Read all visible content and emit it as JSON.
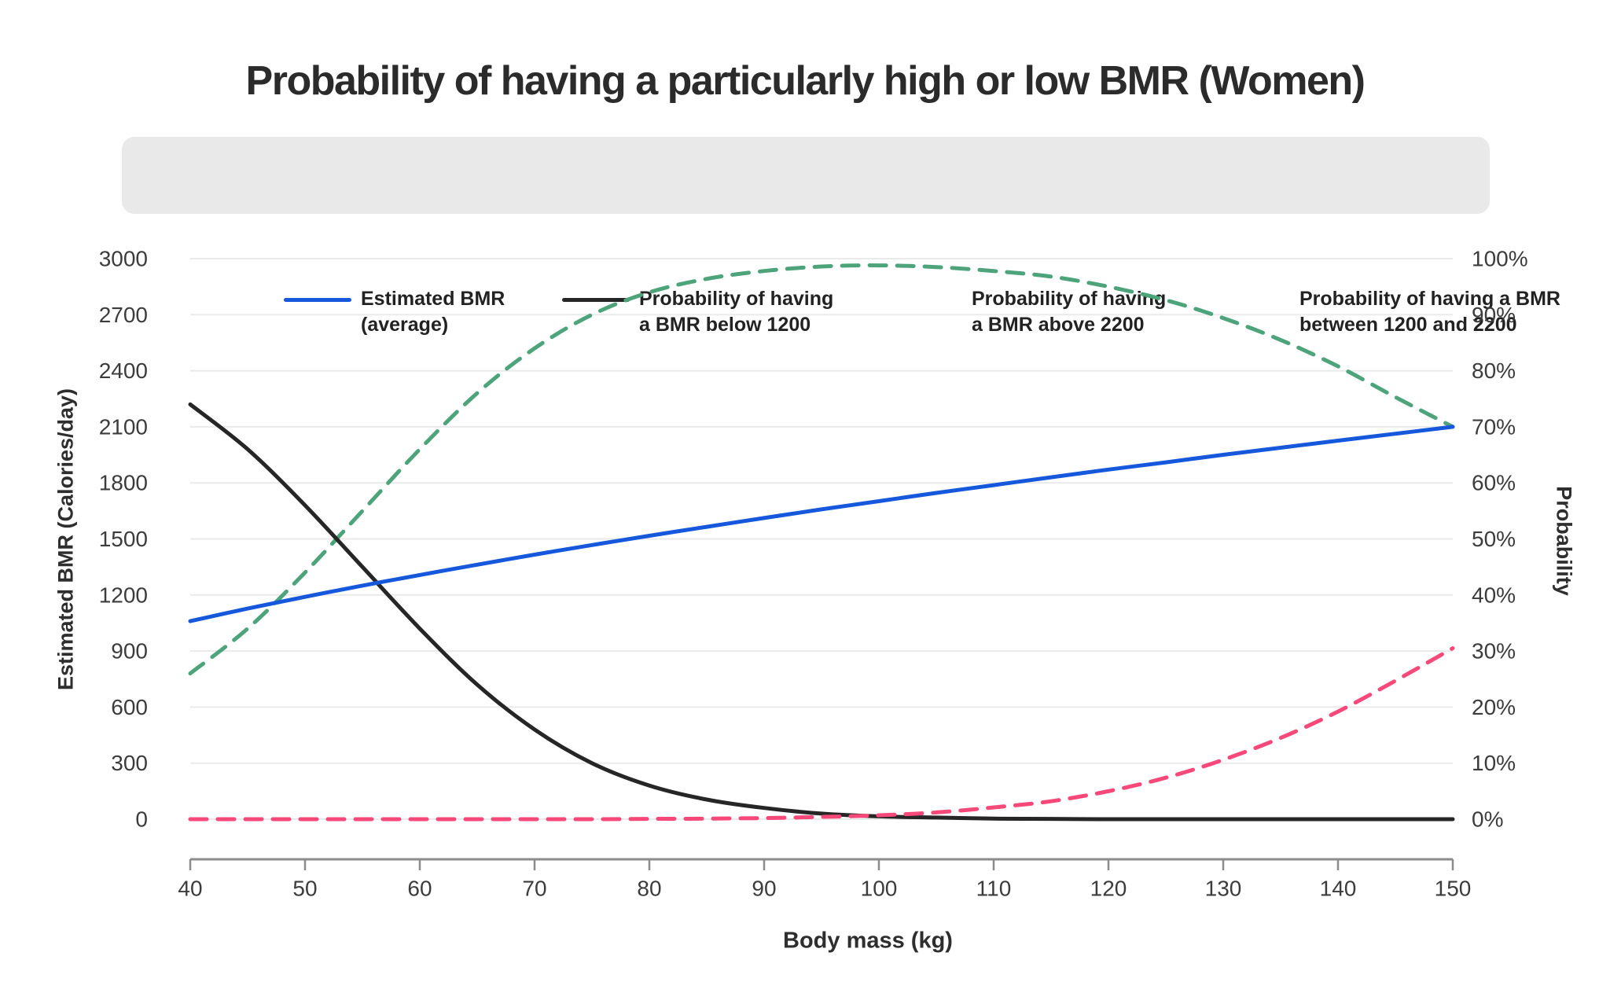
{
  "title": "Probability of having a particularly high or low BMR (Women)",
  "legend": {
    "background_color": "#e9e9e9",
    "items": [
      {
        "name": "estimated-bmr",
        "label_line1": "Estimated BMR",
        "label_line2": "(average)",
        "color": "#1658dc",
        "style": "solid"
      },
      {
        "name": "bmr-below-1200",
        "label_line1": "Probability of having",
        "label_line2": "a BMR below 1200",
        "color": "#262626",
        "style": "solid"
      },
      {
        "name": "bmr-above-2200",
        "label_line1": "Probability of having",
        "label_line2": "a BMR above 2200",
        "color": "#f7487a",
        "style": "dashed"
      },
      {
        "name": "bmr-between-1200-2200",
        "label_line1": "Probability of having a BMR",
        "label_line2": "between 1200 and 2200",
        "color": "#4da47a",
        "style": "dashed"
      }
    ]
  },
  "axes": {
    "y_left_title": "Estimated BMR (Calories/day)",
    "y_right_title": "Probability",
    "x_title": "Body mass (kg)"
  },
  "chart_data": {
    "type": "line",
    "title": "Probability of having a particularly high or low BMR (Women)",
    "xlabel": "Body mass (kg)",
    "ylabel_left": "Estimated BMR (Calories/day)",
    "ylabel_right": "Probability",
    "x_range": [
      40,
      150
    ],
    "y_left_range": [
      0,
      3000
    ],
    "y_right_range": [
      0,
      100
    ],
    "x_ticks": [
      40,
      50,
      60,
      70,
      80,
      90,
      100,
      110,
      120,
      130,
      140,
      150
    ],
    "y_left_ticks": [
      3000,
      2700,
      2400,
      2100,
      1800,
      1500,
      1200,
      900,
      600,
      300,
      0
    ],
    "y_right_tick_labels": [
      "100%",
      "90%",
      "80%",
      "70%",
      "60%",
      "50%",
      "40%",
      "30%",
      "20%",
      "10%",
      "0%"
    ],
    "grid": "horizontal",
    "legend_position": "top",
    "x": [
      40,
      45,
      50,
      55,
      60,
      65,
      70,
      75,
      80,
      85,
      90,
      95,
      100,
      105,
      110,
      115,
      120,
      125,
      130,
      135,
      140,
      145,
      150
    ],
    "series": [
      {
        "name": "Estimated BMR (average)",
        "axis": "left",
        "color": "#1658dc",
        "style": "solid",
        "values": [
          1060,
          1127,
          1190,
          1250,
          1307,
          1362,
          1416,
          1467,
          1517,
          1565,
          1612,
          1658,
          1702,
          1746,
          1788,
          1830,
          1871,
          1910,
          1950,
          1988,
          2026,
          2063,
          2100
        ]
      },
      {
        "name": "Probability of having a BMR below 1200",
        "axis": "right",
        "color": "#262626",
        "style": "solid",
        "values": [
          74,
          66,
          56,
          45,
          34,
          24,
          16,
          10,
          6,
          3.5,
          2,
          1,
          0.5,
          0.3,
          0.1,
          0.05,
          0,
          0,
          0,
          0,
          0,
          0,
          0
        ]
      },
      {
        "name": "Probability of having a BMR above 2200",
        "axis": "right",
        "color": "#f7487a",
        "style": "dashed",
        "values": [
          0,
          0,
          0,
          0,
          0,
          0,
          0,
          0,
          0.05,
          0.1,
          0.2,
          0.4,
          0.7,
          1.2,
          2.1,
          3.2,
          5,
          7.4,
          10.6,
          14.5,
          19.2,
          24.7,
          30.5
        ]
      },
      {
        "name": "Probability of having a BMR between 1200 and 2200",
        "axis": "right",
        "color": "#4da47a",
        "style": "dashed",
        "values": [
          26,
          34,
          44,
          55,
          66,
          76,
          84,
          90,
          94,
          96.4,
          97.8,
          98.6,
          98.8,
          98.5,
          97.8,
          96.8,
          95,
          92.6,
          89.4,
          85.5,
          80.8,
          75.3,
          70
        ]
      }
    ],
    "colors": {
      "gridline": "#eaeaea",
      "axis_line": "#8c8c8c",
      "tick_label": "#3c3c3c"
    }
  }
}
